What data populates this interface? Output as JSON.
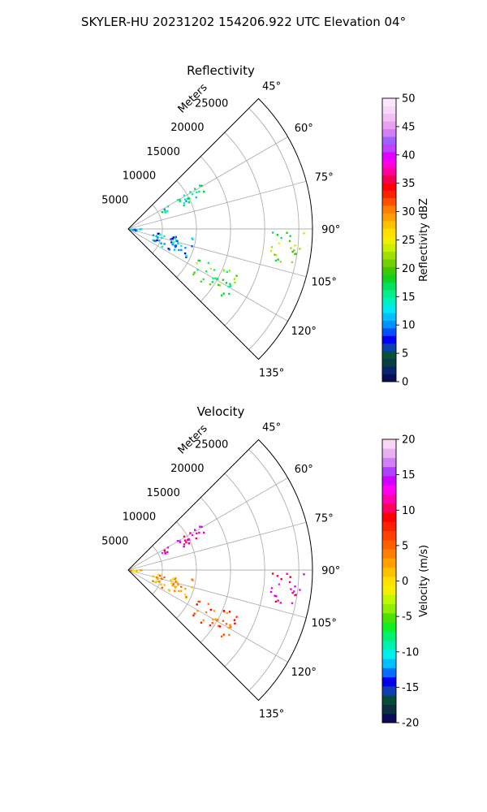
{
  "figure": {
    "title": "SKYLER-HU  20231202  154206.922 UTC Elevation 04°"
  },
  "chart_data": [
    {
      "type": "polar-sector",
      "title": "Reflectivity",
      "radial_label": "Meters",
      "radial_ticks": [
        "5000",
        "10000",
        "15000",
        "20000",
        "25000"
      ],
      "radial_values": [
        5000,
        10000,
        15000,
        20000,
        25000
      ],
      "rmax": 27000,
      "angle_ticks": [
        "45°",
        "60°",
        "75°",
        "90°",
        "105°",
        "120°",
        "135°"
      ],
      "angle_values": [
        45,
        60,
        75,
        90,
        105,
        120,
        135
      ],
      "theta_range": [
        45,
        135
      ],
      "colorbar": {
        "label": "Reflectivity dBZ",
        "range": [
          0,
          50
        ],
        "ticks": [
          "0",
          "5",
          "10",
          "15",
          "20",
          "25",
          "30",
          "35",
          "40",
          "45",
          "50"
        ],
        "tick_values": [
          0,
          5,
          10,
          15,
          20,
          25,
          30,
          35,
          40,
          45,
          50
        ]
      },
      "echo_regions": [
        {
          "theta": [
            56,
            66
          ],
          "range_m": [
            5500,
            11000
          ],
          "value": 14
        },
        {
          "theta": [
            57,
            63
          ],
          "range_m": [
            9000,
            12500
          ],
          "value": 19
        },
        {
          "theta": [
            85,
            97
          ],
          "range_m": [
            0,
            2200
          ],
          "value": 11
        },
        {
          "theta": [
            91,
            103
          ],
          "range_m": [
            21000,
            26000
          ],
          "value": 21
        },
        {
          "theta": [
            112,
            126
          ],
          "range_m": [
            11000,
            17500
          ],
          "value": 19
        },
        {
          "theta": [
            97,
            117
          ],
          "range_m": [
            3500,
            9500
          ],
          "value": 10
        }
      ]
    },
    {
      "type": "polar-sector",
      "title": "Velocity",
      "radial_label": "Meters",
      "radial_ticks": [
        "5000",
        "10000",
        "15000",
        "20000",
        "25000"
      ],
      "radial_values": [
        5000,
        10000,
        15000,
        20000,
        25000
      ],
      "rmax": 27000,
      "angle_ticks": [
        "45°",
        "60°",
        "75°",
        "90°",
        "105°",
        "120°",
        "135°"
      ],
      "angle_values": [
        45,
        60,
        75,
        90,
        105,
        120,
        135
      ],
      "theta_range": [
        45,
        135
      ],
      "colorbar": {
        "label": "Velocity (m/s)",
        "range": [
          -20,
          20
        ],
        "ticks": [
          "-20",
          "-15",
          "-10",
          "-5",
          "0",
          "5",
          "10",
          "15",
          "20"
        ],
        "tick_values": [
          -20,
          -15,
          -10,
          -5,
          0,
          5,
          10,
          15,
          20
        ]
      },
      "echo_regions": [
        {
          "theta": [
            56,
            66
          ],
          "range_m": [
            5500,
            11000
          ],
          "value": 12
        },
        {
          "theta": [
            57,
            63
          ],
          "range_m": [
            9000,
            12500
          ],
          "value": 15
        },
        {
          "theta": [
            85,
            97
          ],
          "range_m": [
            0,
            2200
          ],
          "value": 1
        },
        {
          "theta": [
            91,
            103
          ],
          "range_m": [
            21000,
            26000
          ],
          "value": 12
        },
        {
          "theta": [
            112,
            126
          ],
          "range_m": [
            11000,
            17500
          ],
          "value": 6
        },
        {
          "theta": [
            97,
            117
          ],
          "range_m": [
            3500,
            9500
          ],
          "value": 2
        }
      ]
    }
  ]
}
